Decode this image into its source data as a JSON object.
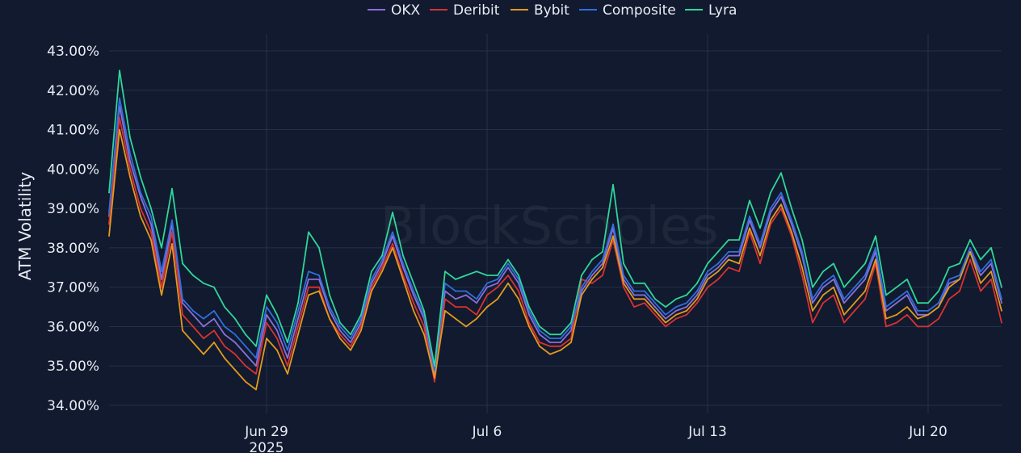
{
  "chart_data": {
    "type": "line",
    "title": "",
    "watermark": "BlockScholes",
    "ylabel": "ATM Volatility",
    "xlabel": "",
    "ylim": [
      34.0,
      43.0
    ],
    "yticks": [
      "34.00%",
      "35.00%",
      "36.00%",
      "37.00%",
      "38.00%",
      "39.00%",
      "40.00%",
      "41.00%",
      "42.00%",
      "43.00%"
    ],
    "ytick_values": [
      34,
      35,
      36,
      37,
      38,
      39,
      40,
      41,
      42,
      43
    ],
    "xlim": [
      "2025-06-24T00:00",
      "2025-07-22T08:00"
    ],
    "xticks": [
      {
        "date": "2025-06-29",
        "label": "Jun 29",
        "sublabel": "2025"
      },
      {
        "date": "2025-07-06",
        "label": "Jul 6",
        "sublabel": ""
      },
      {
        "date": "2025-07-13",
        "label": "Jul 13",
        "sublabel": ""
      },
      {
        "date": "2025-07-20",
        "label": "Jul 20",
        "sublabel": ""
      }
    ],
    "grid": true,
    "legend_position": "top-center",
    "x": [
      "2025-06-24T00:00",
      "2025-06-24T08:00",
      "2025-06-24T16:00",
      "2025-06-25T00:00",
      "2025-06-25T08:00",
      "2025-06-25T16:00",
      "2025-06-26T00:00",
      "2025-06-26T08:00",
      "2025-06-26T16:00",
      "2025-06-27T00:00",
      "2025-06-27T08:00",
      "2025-06-27T16:00",
      "2025-06-28T00:00",
      "2025-06-28T08:00",
      "2025-06-28T16:00",
      "2025-06-29T00:00",
      "2025-06-29T08:00",
      "2025-06-29T16:00",
      "2025-06-30T00:00",
      "2025-06-30T08:00",
      "2025-06-30T16:00",
      "2025-07-01T00:00",
      "2025-07-01T08:00",
      "2025-07-01T16:00",
      "2025-07-02T00:00",
      "2025-07-02T08:00",
      "2025-07-02T16:00",
      "2025-07-03T00:00",
      "2025-07-03T08:00",
      "2025-07-03T16:00",
      "2025-07-04T00:00",
      "2025-07-04T08:00",
      "2025-07-04T16:00",
      "2025-07-05T00:00",
      "2025-07-05T08:00",
      "2025-07-05T16:00",
      "2025-07-06T00:00",
      "2025-07-06T08:00",
      "2025-07-06T16:00",
      "2025-07-07T00:00",
      "2025-07-07T08:00",
      "2025-07-07T16:00",
      "2025-07-08T00:00",
      "2025-07-08T08:00",
      "2025-07-08T16:00",
      "2025-07-09T00:00",
      "2025-07-09T08:00",
      "2025-07-09T16:00",
      "2025-07-10T00:00",
      "2025-07-10T08:00",
      "2025-07-10T16:00",
      "2025-07-11T00:00",
      "2025-07-11T08:00",
      "2025-07-11T16:00",
      "2025-07-12T00:00",
      "2025-07-12T08:00",
      "2025-07-12T16:00",
      "2025-07-13T00:00",
      "2025-07-13T08:00",
      "2025-07-13T16:00",
      "2025-07-14T00:00",
      "2025-07-14T08:00",
      "2025-07-14T16:00",
      "2025-07-15T00:00",
      "2025-07-15T08:00",
      "2025-07-15T16:00",
      "2025-07-16T00:00",
      "2025-07-16T08:00",
      "2025-07-16T16:00",
      "2025-07-17T00:00",
      "2025-07-17T08:00",
      "2025-07-17T16:00",
      "2025-07-18T00:00",
      "2025-07-18T08:00",
      "2025-07-18T16:00",
      "2025-07-19T00:00",
      "2025-07-19T08:00",
      "2025-07-19T16:00",
      "2025-07-20T00:00",
      "2025-07-20T08:00",
      "2025-07-20T16:00",
      "2025-07-21T00:00",
      "2025-07-21T08:00",
      "2025-07-21T16:00",
      "2025-07-22T00:00",
      "2025-07-22T08:00"
    ],
    "series": [
      {
        "name": "OKX",
        "color": "#8b6fd6",
        "values": [
          38.8,
          41.6,
          40.2,
          39.3,
          38.6,
          37.2,
          38.6,
          36.6,
          36.3,
          36.0,
          36.2,
          35.8,
          35.6,
          35.3,
          35.0,
          36.3,
          35.9,
          35.2,
          36.2,
          37.2,
          37.2,
          36.4,
          35.9,
          35.6,
          36.1,
          37.1,
          37.6,
          38.3,
          37.5,
          36.8,
          36.2,
          34.8,
          36.9,
          36.7,
          36.8,
          36.6,
          37.0,
          37.1,
          37.5,
          37.1,
          36.3,
          35.8,
          35.6,
          35.6,
          35.9,
          36.9,
          37.3,
          37.6,
          38.5,
          37.2,
          36.8,
          36.8,
          36.5,
          36.2,
          36.4,
          36.5,
          36.8,
          37.3,
          37.5,
          37.8,
          37.8,
          38.7,
          38.0,
          38.9,
          39.3,
          38.6,
          37.8,
          36.6,
          37.0,
          37.2,
          36.6,
          36.9,
          37.2,
          37.9,
          36.4,
          36.6,
          36.8,
          36.3,
          36.3,
          36.5,
          37.1,
          37.2,
          37.9,
          37.3,
          37.6,
          36.6
        ]
      },
      {
        "name": "Deribit",
        "color": "#d93232",
        "values": [
          38.6,
          41.3,
          40.0,
          39.0,
          38.4,
          37.0,
          38.4,
          36.3,
          36.0,
          35.7,
          35.9,
          35.5,
          35.3,
          35.0,
          34.8,
          36.1,
          35.7,
          35.0,
          36.0,
          37.0,
          37.0,
          36.2,
          35.8,
          35.5,
          36.0,
          37.0,
          37.5,
          38.1,
          37.3,
          36.6,
          36.0,
          34.6,
          36.7,
          36.5,
          36.5,
          36.3,
          36.8,
          37.0,
          37.3,
          36.9,
          36.1,
          35.6,
          35.5,
          35.5,
          35.7,
          37.2,
          37.1,
          37.3,
          38.2,
          37.0,
          36.5,
          36.6,
          36.3,
          36.0,
          36.2,
          36.3,
          36.6,
          37.0,
          37.2,
          37.5,
          37.4,
          38.4,
          37.6,
          38.6,
          39.0,
          38.3,
          37.3,
          36.1,
          36.6,
          36.8,
          36.1,
          36.4,
          36.7,
          37.6,
          36.0,
          36.1,
          36.3,
          36.0,
          36.0,
          36.2,
          36.7,
          36.9,
          37.7,
          36.9,
          37.2,
          36.1
        ]
      },
      {
        "name": "Bybit",
        "color": "#e39a1e",
        "values": [
          38.3,
          41.0,
          39.8,
          38.8,
          38.2,
          36.8,
          38.1,
          35.9,
          35.6,
          35.3,
          35.6,
          35.2,
          34.9,
          34.6,
          34.4,
          35.7,
          35.4,
          34.8,
          35.8,
          36.8,
          36.9,
          36.2,
          35.7,
          35.4,
          35.9,
          36.9,
          37.4,
          38.0,
          37.2,
          36.4,
          35.8,
          34.7,
          36.4,
          36.2,
          36.0,
          36.2,
          36.5,
          36.7,
          37.1,
          36.7,
          36.0,
          35.5,
          35.3,
          35.4,
          35.6,
          36.8,
          37.2,
          37.5,
          38.3,
          37.1,
          36.7,
          36.7,
          36.4,
          36.1,
          36.3,
          36.4,
          36.7,
          37.2,
          37.4,
          37.7,
          37.6,
          38.5,
          37.8,
          38.7,
          39.1,
          38.4,
          37.5,
          36.4,
          36.8,
          37.0,
          36.3,
          36.6,
          36.9,
          37.7,
          36.2,
          36.3,
          36.5,
          36.2,
          36.3,
          36.5,
          37.0,
          37.2,
          37.9,
          37.1,
          37.4,
          36.4
        ]
      },
      {
        "name": "Composite",
        "color": "#2f6fe0",
        "values": [
          38.9,
          41.8,
          40.4,
          39.4,
          38.8,
          37.4,
          38.7,
          36.7,
          36.4,
          36.2,
          36.4,
          36.0,
          35.8,
          35.5,
          35.2,
          36.5,
          36.1,
          35.4,
          36.4,
          37.4,
          37.3,
          36.5,
          36.0,
          35.7,
          36.2,
          37.2,
          37.7,
          38.4,
          37.6,
          36.9,
          36.3,
          34.9,
          37.1,
          36.9,
          36.9,
          36.7,
          37.1,
          37.2,
          37.6,
          37.2,
          36.4,
          35.9,
          35.7,
          35.7,
          36.0,
          37.0,
          37.4,
          37.7,
          38.6,
          37.3,
          36.9,
          36.9,
          36.6,
          36.3,
          36.5,
          36.6,
          36.9,
          37.4,
          37.6,
          37.9,
          37.9,
          38.8,
          38.1,
          39.0,
          39.4,
          38.7,
          37.9,
          36.7,
          37.1,
          37.3,
          36.7,
          37.0,
          37.3,
          38.0,
          36.5,
          36.7,
          36.9,
          36.4,
          36.4,
          36.6,
          37.2,
          37.3,
          38.0,
          37.4,
          37.7,
          36.7
        ]
      },
      {
        "name": "Lyra",
        "color": "#2fd69a",
        "values": [
          39.4,
          42.5,
          40.8,
          39.8,
          39.0,
          38.0,
          39.5,
          37.6,
          37.3,
          37.1,
          37.0,
          36.5,
          36.2,
          35.8,
          35.5,
          36.8,
          36.3,
          35.6,
          36.6,
          38.4,
          38.0,
          36.8,
          36.1,
          35.8,
          36.3,
          37.4,
          37.8,
          38.9,
          37.8,
          37.1,
          36.4,
          35.0,
          37.4,
          37.2,
          37.3,
          37.4,
          37.3,
          37.3,
          37.7,
          37.3,
          36.5,
          36.0,
          35.8,
          35.8,
          36.1,
          37.3,
          37.7,
          37.9,
          39.6,
          37.6,
          37.1,
          37.1,
          36.7,
          36.5,
          36.7,
          36.8,
          37.1,
          37.6,
          37.9,
          38.2,
          38.2,
          39.2,
          38.5,
          39.4,
          39.9,
          39.0,
          38.2,
          37.0,
          37.4,
          37.6,
          37.0,
          37.3,
          37.6,
          38.3,
          36.8,
          37.0,
          37.2,
          36.6,
          36.6,
          36.9,
          37.5,
          37.6,
          38.2,
          37.7,
          38.0,
          37.0
        ]
      }
    ]
  }
}
